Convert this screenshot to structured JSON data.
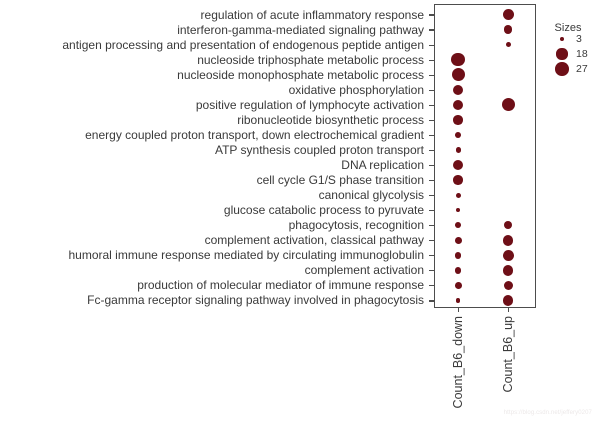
{
  "chart_data": {
    "type": "scatter",
    "variant": "dot-size-plot",
    "title": "",
    "xlabel": "",
    "ylabel": "",
    "grid": false,
    "columns": [
      "Count_B6_down",
      "Count_B6_up"
    ],
    "rows": [
      {
        "label": "regulation of acute inflammatory response",
        "values": [
          null,
          18
        ]
      },
      {
        "label": "interferon-gamma-mediated signaling pathway",
        "values": [
          null,
          11
        ]
      },
      {
        "label": "antigen processing and presentation of endogenous peptide antigen",
        "values": [
          null,
          4
        ]
      },
      {
        "label": "nucleoside triphosphate metabolic process",
        "values": [
          27,
          null
        ]
      },
      {
        "label": "nucleoside monophosphate metabolic process",
        "values": [
          25,
          null
        ]
      },
      {
        "label": "oxidative phosphorylation",
        "values": [
          15,
          null
        ]
      },
      {
        "label": "positive regulation of lymphocyte activation",
        "values": [
          17,
          25
        ]
      },
      {
        "label": "ribonucleotide biosynthetic process",
        "values": [
          13,
          null
        ]
      },
      {
        "label": "energy coupled proton transport, down electrochemical gradient",
        "values": [
          5,
          null
        ]
      },
      {
        "label": "ATP synthesis coupled proton transport",
        "values": [
          4,
          null
        ]
      },
      {
        "label": "DNA replication",
        "values": [
          15,
          null
        ]
      },
      {
        "label": "cell cycle G1/S phase transition",
        "values": [
          13,
          null
        ]
      },
      {
        "label": "canonical glycolysis",
        "values": [
          4,
          null
        ]
      },
      {
        "label": "glucose catabolic process to pyruvate",
        "values": [
          3,
          null
        ]
      },
      {
        "label": "phagocytosis, recognition",
        "values": [
          5,
          10
        ]
      },
      {
        "label": "complement activation, classical pathway",
        "values": [
          7,
          17
        ]
      },
      {
        "label": "humoral immune response mediated by circulating immunoglobulin",
        "values": [
          6,
          18
        ]
      },
      {
        "label": "complement activation",
        "values": [
          6,
          16
        ]
      },
      {
        "label": "production of molecular mediator of immune response",
        "values": [
          7,
          12
        ]
      },
      {
        "label": "Fc-gamma receptor signaling pathway involved in phagocytosis",
        "values": [
          3,
          16
        ]
      }
    ],
    "legend": {
      "title": "Sizes",
      "sizes": [
        3,
        18,
        27
      ],
      "position": "right-top"
    },
    "style": {
      "dot_color": "#6e0f17",
      "size_scale": 2.6
    }
  },
  "watermark": {
    "text": "https://blog.csdn.net/jeffery0207"
  }
}
